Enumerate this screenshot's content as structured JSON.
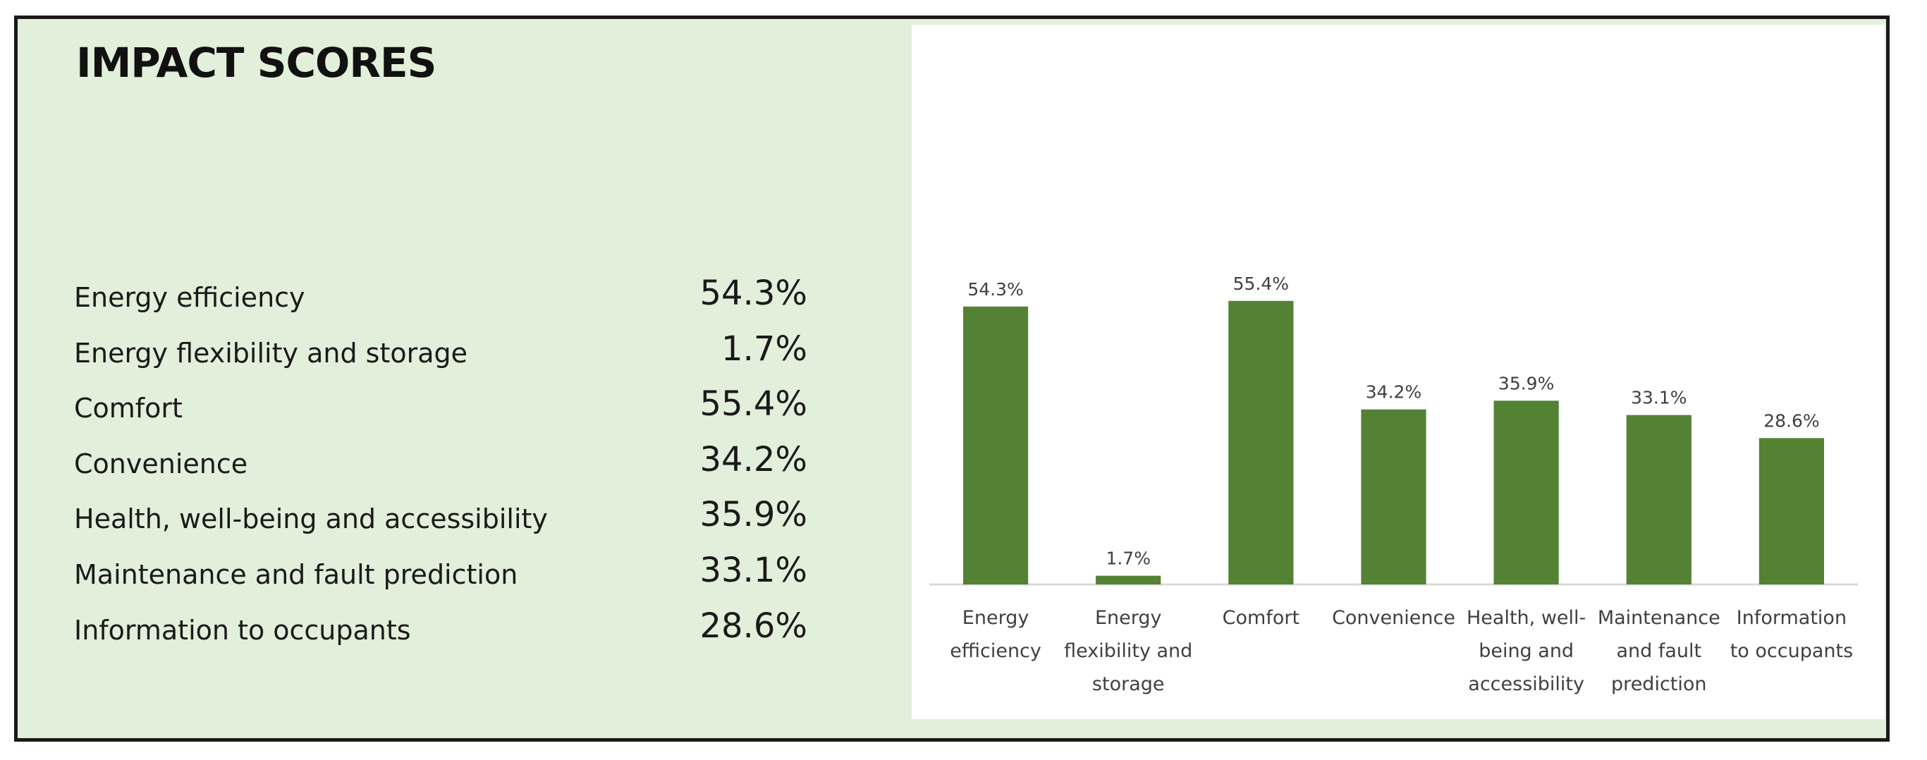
{
  "title": "IMPACT SCORES",
  "scores": [
    {
      "label": "Energy efficiency",
      "value": "54.3%"
    },
    {
      "label": "Energy flexibility and storage",
      "value": "1.7%"
    },
    {
      "label": "Comfort",
      "value": "55.4%"
    },
    {
      "label": "Convenience",
      "value": "34.2%"
    },
    {
      "label": "Health, well-being and accessibility",
      "value": "35.9%"
    },
    {
      "label": "Maintenance and fault prediction",
      "value": "33.1%"
    },
    {
      "label": "Information to occupants",
      "value": "28.6%"
    }
  ],
  "chart_data": {
    "type": "bar",
    "categories": [
      [
        "Energy",
        "efficiency"
      ],
      [
        "Energy",
        "flexibility and",
        "storage"
      ],
      [
        "Comfort"
      ],
      [
        "Convenience"
      ],
      [
        "Health, well-",
        "being and",
        "accessibility"
      ],
      [
        "Maintenance",
        "and fault",
        "prediction"
      ],
      [
        "Information",
        "to occupants"
      ]
    ],
    "values": [
      54.3,
      1.7,
      55.4,
      34.2,
      35.9,
      33.1,
      28.6
    ],
    "data_labels": [
      "54.3%",
      "1.7%",
      "55.4%",
      "34.2%",
      "35.9%",
      "33.1%",
      "28.6%"
    ],
    "ylim": [
      0,
      100
    ],
    "grid": false,
    "legend": "none",
    "bar_color": "#548235",
    "axis_color": "#d9d9d9",
    "label_color": "#404040"
  }
}
